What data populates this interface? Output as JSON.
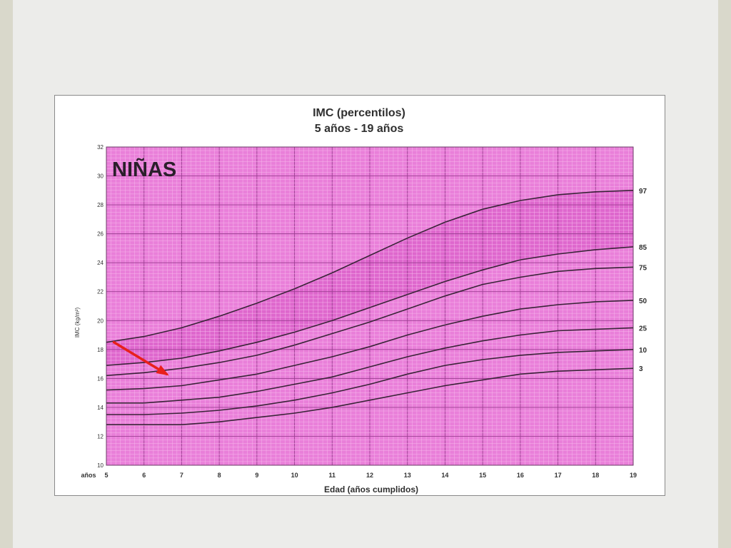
{
  "chart_data": {
    "type": "line",
    "title": "IMC (percentilos)",
    "subtitle": "5 años - 19 años",
    "panel_label": "NIÑAS",
    "xlabel": "Edad (años cumplidos)",
    "x_unit_label": "años",
    "ylabel": "IMC (kg/m²)",
    "xlim": [
      5,
      19
    ],
    "ylim": [
      10,
      32
    ],
    "x_ticks": [
      "5",
      "6",
      "7",
      "8",
      "9",
      "10",
      "11",
      "12",
      "13",
      "14",
      "15",
      "16",
      "17",
      "18",
      "19"
    ],
    "y_ticks": [
      "10",
      "12",
      "14",
      "16",
      "18",
      "20",
      "22",
      "24",
      "26",
      "28",
      "30",
      "32"
    ],
    "grid": true,
    "background_color": "#e97fd9",
    "band_color": "#da5fc8",
    "line_color": "#3a2438",
    "arrow_color": "#e8201c",
    "annotation": {
      "type": "arrow",
      "from": [
        5.2,
        18.5
      ],
      "to": [
        6.6,
        16.3
      ]
    },
    "x": [
      5,
      6,
      7,
      8,
      9,
      10,
      11,
      12,
      13,
      14,
      15,
      16,
      17,
      18,
      19
    ],
    "series": [
      {
        "name": "97",
        "values": [
          18.5,
          18.9,
          19.5,
          20.3,
          21.2,
          22.2,
          23.3,
          24.5,
          25.7,
          26.8,
          27.7,
          28.3,
          28.7,
          28.9,
          29.0
        ]
      },
      {
        "name": "85",
        "values": [
          16.9,
          17.1,
          17.4,
          17.9,
          18.5,
          19.2,
          20.0,
          20.9,
          21.8,
          22.7,
          23.5,
          24.2,
          24.6,
          24.9,
          25.1
        ]
      },
      {
        "name": "75",
        "values": [
          16.2,
          16.4,
          16.7,
          17.1,
          17.6,
          18.3,
          19.1,
          19.9,
          20.8,
          21.7,
          22.5,
          23.0,
          23.4,
          23.6,
          23.7
        ]
      },
      {
        "name": "50",
        "values": [
          15.2,
          15.3,
          15.5,
          15.9,
          16.3,
          16.9,
          17.5,
          18.2,
          19.0,
          19.7,
          20.3,
          20.8,
          21.1,
          21.3,
          21.4
        ]
      },
      {
        "name": "25",
        "values": [
          14.3,
          14.3,
          14.5,
          14.7,
          15.1,
          15.6,
          16.1,
          16.8,
          17.5,
          18.1,
          18.6,
          19.0,
          19.3,
          19.4,
          19.5
        ]
      },
      {
        "name": "10",
        "values": [
          13.5,
          13.5,
          13.6,
          13.8,
          14.1,
          14.5,
          15.0,
          15.6,
          16.3,
          16.9,
          17.3,
          17.6,
          17.8,
          17.9,
          18.0
        ]
      },
      {
        "name": "3",
        "values": [
          12.8,
          12.8,
          12.8,
          13.0,
          13.3,
          13.6,
          14.0,
          14.5,
          15.0,
          15.5,
          15.9,
          16.3,
          16.5,
          16.6,
          16.7
        ]
      }
    ]
  }
}
